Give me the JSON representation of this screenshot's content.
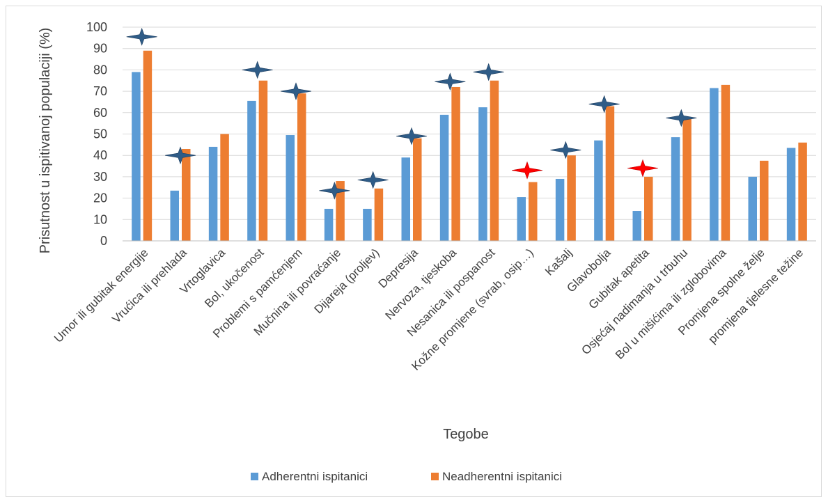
{
  "chart_data": {
    "type": "bar",
    "title": "",
    "xlabel": "Tegobe",
    "ylabel": "Prisutnost u ispitivanoj populaciji (%)",
    "ylim": [
      0,
      100
    ],
    "yticks": [
      0,
      10,
      20,
      30,
      40,
      50,
      60,
      70,
      80,
      90,
      100
    ],
    "grid": true,
    "legend_position": "bottom",
    "categories": [
      "Umor ili gubitak energije",
      "Vrućica ili prehlada",
      "Vrtoglavica",
      "Bol, ukočenost",
      "Problemi s pamćenjem",
      "Mučnina ili povraćanje",
      "Dijareja (proljev)",
      "Depresija",
      "Nervoza, tjeskoba",
      "Nesanica ili pospanost",
      "Kožne promjene (svrab, osip…)",
      "Kašalj",
      "Glavobolja",
      "Gubitak apetita",
      "Osjećaj nadimanja u trbuhu",
      "Bol u mišićima ili zglobovima",
      "Promjena spolne želje",
      "promjena tjelesne težine"
    ],
    "series": [
      {
        "name": "Adherentni ispitanici",
        "color": "#5b9bd5",
        "values": [
          79,
          23.5,
          44,
          65.5,
          49.5,
          15,
          15,
          39,
          59,
          62.5,
          20.5,
          29,
          47,
          14,
          48.5,
          71.5,
          30,
          43.5
        ]
      },
      {
        "name": "Neadherentni ispitanici",
        "color": "#ed7d31",
        "values": [
          89,
          43,
          50,
          75,
          69,
          28,
          24.5,
          48,
          72,
          75,
          27.5,
          40,
          63,
          30,
          57.5,
          73,
          37.5,
          46
        ]
      }
    ],
    "markers": [
      {
        "category": 0,
        "value": 95.5,
        "color": "#2f5c87"
      },
      {
        "category": 1,
        "value": 40,
        "color": "#2f5c87"
      },
      {
        "category": 3,
        "value": 80,
        "color": "#2f5c87"
      },
      {
        "category": 4,
        "value": 70,
        "color": "#2f5c87"
      },
      {
        "category": 5,
        "value": 23.5,
        "color": "#2f5c87"
      },
      {
        "category": 6,
        "value": 28.5,
        "color": "#2f5c87"
      },
      {
        "category": 7,
        "value": 49,
        "color": "#2f5c87"
      },
      {
        "category": 8,
        "value": 74.5,
        "color": "#2f5c87"
      },
      {
        "category": 9,
        "value": 79,
        "color": "#2f5c87"
      },
      {
        "category": 10,
        "value": 33,
        "color": "#ff0000"
      },
      {
        "category": 11,
        "value": 42.5,
        "color": "#2f5c87"
      },
      {
        "category": 12,
        "value": 64,
        "color": "#2f5c87"
      },
      {
        "category": 13,
        "value": 34,
        "color": "#ff0000"
      },
      {
        "category": 14,
        "value": 57.5,
        "color": "#2f5c87"
      }
    ],
    "gridline_color": "#d9d9d9",
    "axis_color": "#bfbfbf"
  }
}
